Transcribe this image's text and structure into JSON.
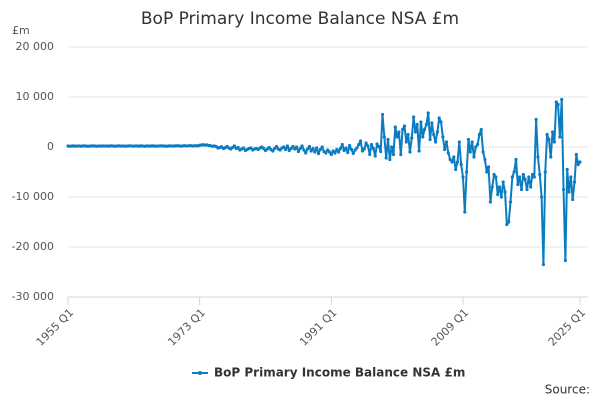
{
  "chart_data": {
    "type": "line",
    "title": "BoP Primary Income Balance NSA £m",
    "y_unit": "£m",
    "source": "Source:",
    "categories": [
      "1955 Q1",
      null,
      null,
      null,
      null,
      null,
      null,
      null,
      null,
      null,
      null,
      null,
      null,
      null,
      null,
      null,
      null,
      null,
      null,
      null,
      null,
      null,
      null,
      null,
      null,
      null,
      null,
      null,
      null,
      null,
      null,
      null,
      null,
      null,
      null,
      null,
      null,
      null,
      null,
      null,
      null,
      null,
      null,
      null,
      null,
      null,
      null,
      null,
      null,
      null,
      null,
      null,
      null,
      null,
      null,
      null,
      null,
      null,
      null,
      null,
      null,
      null,
      null,
      null,
      null,
      null,
      null,
      null,
      null,
      null,
      null,
      null,
      "1973 Q1",
      null,
      null,
      null,
      null,
      null,
      null,
      null,
      null,
      null,
      null,
      null,
      null,
      null,
      null,
      null,
      null,
      null,
      null,
      null,
      null,
      null,
      null,
      null,
      null,
      null,
      null,
      null,
      null,
      null,
      null,
      null,
      null,
      null,
      null,
      null,
      null,
      null,
      null,
      null,
      null,
      null,
      null,
      null,
      null,
      null,
      null,
      null,
      null,
      null,
      null,
      null,
      null,
      null,
      null,
      null,
      null,
      null,
      null,
      null,
      null,
      null,
      null,
      null,
      null,
      null,
      null,
      null,
      null,
      null,
      null,
      null,
      "1991 Q1",
      null,
      null,
      null,
      null,
      null,
      null,
      null,
      null,
      null,
      null,
      null,
      null,
      null,
      null,
      null,
      null,
      null,
      null,
      null,
      null,
      null,
      null,
      null,
      null,
      null,
      null,
      null,
      null,
      null,
      null,
      null,
      null,
      null,
      null,
      null,
      null,
      null,
      null,
      null,
      null,
      null,
      null,
      null,
      null,
      null,
      null,
      null,
      null,
      null,
      null,
      null,
      null,
      null,
      null,
      null,
      null,
      null,
      null,
      null,
      null,
      null,
      null,
      null,
      null,
      null,
      null,
      null,
      null,
      null,
      null,
      null,
      "2009 Q1",
      null,
      null,
      null,
      null,
      null,
      null,
      null,
      null,
      null,
      null,
      null,
      null,
      null,
      null,
      null,
      null,
      null,
      null,
      null,
      null,
      null,
      null,
      null,
      null,
      null,
      null,
      null,
      null,
      null,
      null,
      null,
      null,
      null,
      null,
      null,
      null,
      null,
      null,
      null,
      null,
      null,
      null,
      null,
      null,
      null,
      null,
      null,
      null,
      null,
      null,
      null,
      null,
      null,
      null,
      null,
      null,
      null,
      null,
      null,
      null,
      null,
      null,
      null,
      "2025 Q1"
    ],
    "series": [
      {
        "name": "BoP Primary Income Balance NSA £m",
        "color": "#0b7cc1",
        "values": [
          200,
          150,
          180,
          220,
          170,
          190,
          210,
          160,
          200,
          230,
          180,
          150,
          170,
          200,
          220,
          190,
          160,
          210,
          180,
          200,
          190,
          210,
          170,
          200,
          230,
          180,
          160,
          200,
          220,
          190,
          210,
          170,
          180,
          200,
          240,
          190,
          170,
          210,
          200,
          180,
          220,
          190,
          160,
          200,
          210,
          180,
          230,
          200,
          170,
          190,
          210,
          240,
          200,
          180,
          160,
          200,
          220,
          190,
          210,
          230,
          250,
          200,
          180,
          220,
          260,
          210,
          240,
          280,
          200,
          230,
          260,
          220,
          350,
          400,
          450,
          380,
          420,
          300,
          250,
          150,
          200,
          100,
          -200,
          -100,
          50,
          -300,
          -150,
          100,
          -200,
          -400,
          -100,
          200,
          -300,
          -100,
          -600,
          -400,
          -200,
          -700,
          -500,
          -300,
          -200,
          -600,
          -400,
          -300,
          -500,
          -200,
          0,
          -300,
          -700,
          -400,
          -100,
          -500,
          -800,
          -300,
          100,
          -400,
          -600,
          -200,
          0,
          -500,
          200,
          -700,
          -300,
          100,
          -400,
          0,
          -900,
          -300,
          200,
          -600,
          -1200,
          -400,
          100,
          -800,
          -300,
          -1000,
          -200,
          -1300,
          -500,
          0,
          -900,
          -1200,
          -600,
          -1000,
          -1500,
          -800,
          -1200,
          -500,
          -1000,
          -300,
          500,
          -700,
          -200,
          -1100,
          300,
          -500,
          -1300,
          -600,
          -200,
          500,
          1200,
          -800,
          -400,
          800,
          200,
          -1500,
          500,
          -300,
          -1800,
          600,
          100,
          -900,
          6500,
          2000,
          -2200,
          1500,
          -2500,
          0,
          -1500,
          4000,
          2000,
          3000,
          -1500,
          3500,
          4200,
          1000,
          2500,
          -1000,
          1800,
          6000,
          3000,
          4500,
          -800,
          5000,
          2000,
          3500,
          4500,
          6800,
          1500,
          4800,
          2500,
          1000,
          3000,
          5800,
          5000,
          2000,
          -500,
          1000,
          -1200,
          -2500,
          -3000,
          -2000,
          -4500,
          -3000,
          1000,
          -3500,
          -6000,
          -13000,
          -5000,
          1500,
          -1000,
          1000,
          -2000,
          0,
          500,
          2500,
          3500,
          -1000,
          -2500,
          -5000,
          -4000,
          -11000,
          -8000,
          -5500,
          -6000,
          -9500,
          -8000,
          -10000,
          -7000,
          -9000,
          -15500,
          -15000,
          -11000,
          -6000,
          -5000,
          -2500,
          -7500,
          -6000,
          -8500,
          -5500,
          -6500,
          -8500,
          -6000,
          -8000,
          -5500,
          -6000,
          5500,
          -2000,
          -5500,
          -10000,
          -23500,
          -5000,
          2500,
          1500,
          -2000,
          3000,
          1000,
          9000,
          8500,
          2000,
          9500,
          -8500,
          -22700,
          -4500,
          -9000,
          -6000,
          -10500,
          -7000,
          -1500,
          -3500,
          -3000
        ]
      }
    ],
    "ylim": [
      -30000,
      20000
    ],
    "yticks": [
      {
        "value": -30000,
        "label": "-30 000"
      },
      {
        "value": -20000,
        "label": "-20 000"
      },
      {
        "value": -10000,
        "label": "-10 000"
      },
      0,
      {
        "value": 10000,
        "label": "10 000"
      },
      {
        "value": 20000,
        "label": "20 000"
      }
    ],
    "grid": true
  }
}
